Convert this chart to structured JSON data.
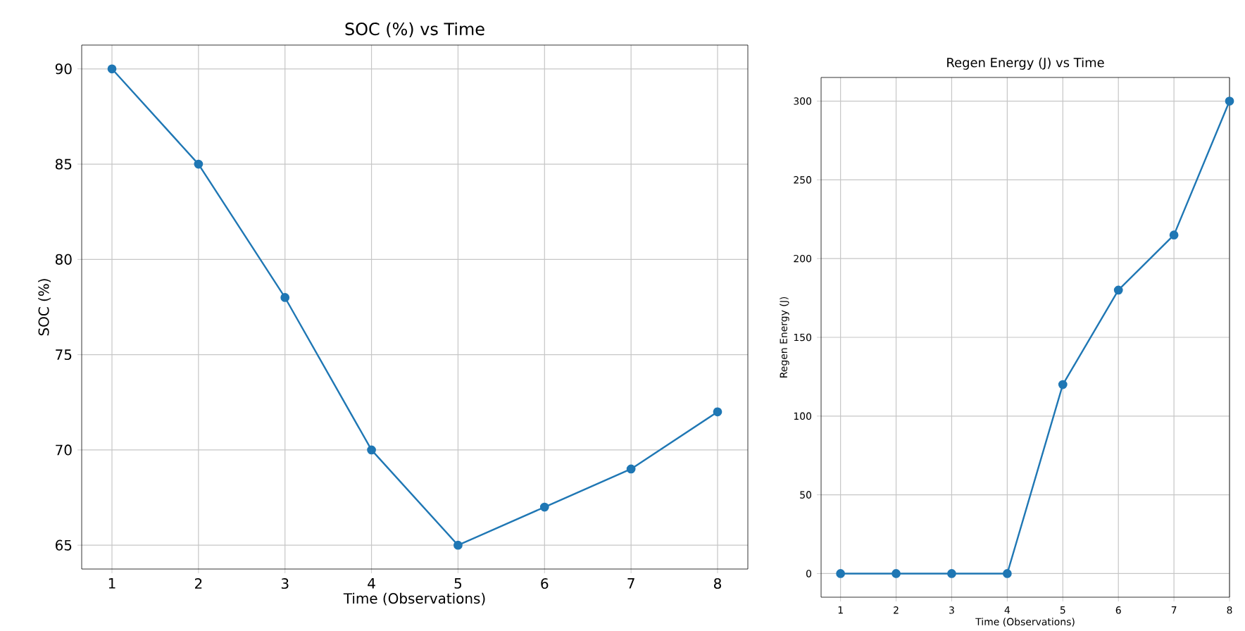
{
  "chart_data": [
    {
      "type": "line",
      "title": "SOC (%) vs Time",
      "xlabel": "Time (Observations)",
      "ylabel": "SOC (%)",
      "x": [
        1,
        2,
        3,
        4,
        5,
        6,
        7,
        8
      ],
      "series": [
        {
          "color": "#1f77b4",
          "values": [
            90,
            85,
            78,
            70,
            65,
            67,
            69,
            72
          ]
        }
      ],
      "xlim": [
        0.65,
        8.35
      ],
      "ylim": [
        63.75,
        91.25
      ],
      "xticks": [
        1,
        2,
        3,
        4,
        5,
        6,
        7,
        8
      ],
      "yticks": [
        65,
        70,
        75,
        80,
        85,
        90
      ],
      "grid": true,
      "marker": "circle",
      "line_style": "solid"
    },
    {
      "type": "line",
      "title": "Regen Energy (J) vs Time",
      "xlabel": "Time (Observations)",
      "ylabel": "Regen Energy (J)",
      "x": [
        1,
        2,
        3,
        4,
        5,
        6,
        7,
        8
      ],
      "series": [
        {
          "color": "#1f77b4",
          "values": [
            0,
            0,
            0,
            0,
            120,
            180,
            215,
            300
          ]
        }
      ],
      "xlim": [
        0.65,
        8.0
      ],
      "ylim": [
        -15,
        315
      ],
      "xticks": [
        1,
        2,
        3,
        4,
        5,
        6,
        7,
        8
      ],
      "yticks": [
        0,
        50,
        100,
        150,
        200,
        250,
        300
      ],
      "grid": true,
      "marker": "circle",
      "line_style": "solid"
    }
  ]
}
